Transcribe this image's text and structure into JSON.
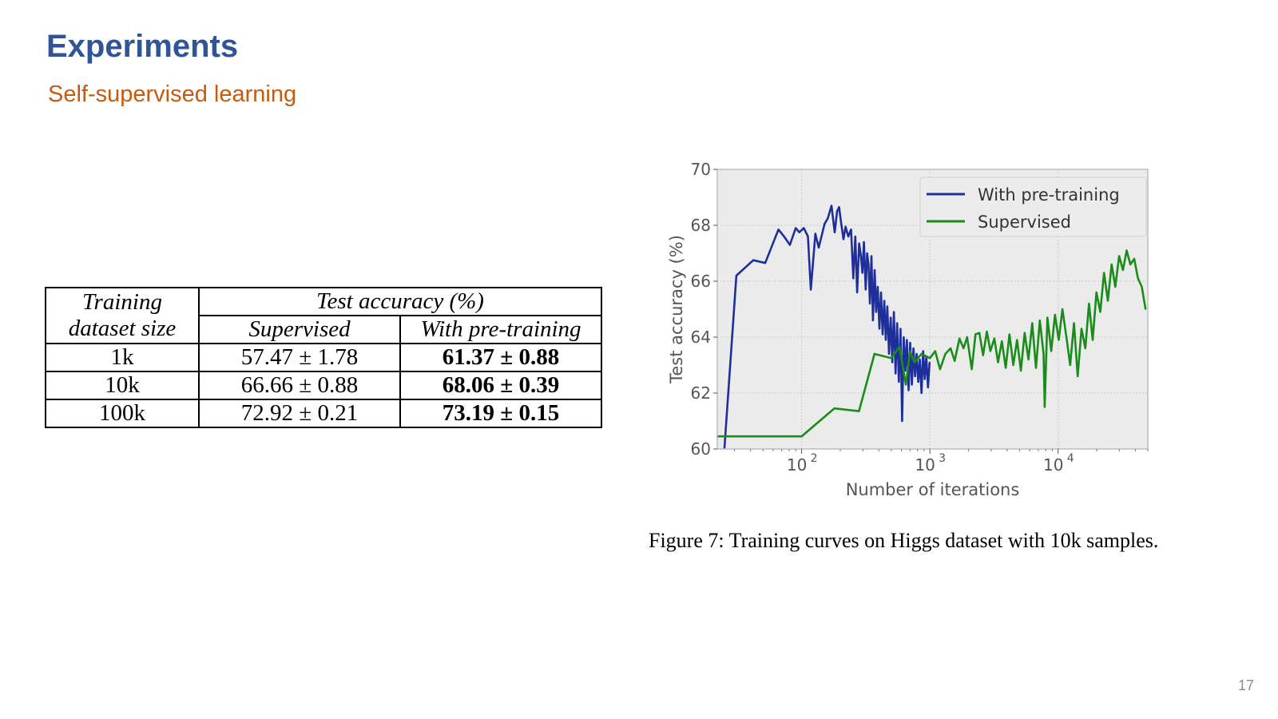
{
  "slide": {
    "title": "Experiments",
    "subtitle": "Self-supervised learning",
    "page_number": "17"
  },
  "table": {
    "header_col1_line1": "Training",
    "header_col1_line2": "dataset size",
    "header_group": "Test accuracy (%)",
    "header_supervised": "Supervised",
    "header_pretraining": "With pre-training",
    "rows": [
      {
        "size": "1k",
        "supervised": "57.47 ± 1.78",
        "pretraining": "61.37 ± 0.88"
      },
      {
        "size": "10k",
        "supervised": "66.66 ± 0.88",
        "pretraining": "68.06 ± 0.39"
      },
      {
        "size": "100k",
        "supervised": "72.92 ± 0.21",
        "pretraining": "73.19 ± 0.15"
      }
    ]
  },
  "caption": "Figure 7: Training curves on Higgs dataset with 10k samples.",
  "colors": {
    "title": "#2F5597",
    "subtitle": "#C55A11",
    "pretraining": "#1f2f99",
    "supervised": "#1a8c1a",
    "plot_bg": "#ebebeb"
  },
  "chart_data": {
    "type": "line",
    "x_scale": "log",
    "xlabel": "Number of iterations",
    "ylabel": "Test accuracy (%)",
    "xlim": [
      22,
      50000
    ],
    "ylim": [
      60,
      70
    ],
    "x_ticks": [
      100,
      1000,
      10000
    ],
    "x_tick_labels": [
      "10",
      "10",
      "10"
    ],
    "x_tick_exponents": [
      "2",
      "3",
      "4"
    ],
    "y_ticks": [
      60,
      62,
      64,
      66,
      68,
      70
    ],
    "grid": true,
    "legend_position": "top-right",
    "series": [
      {
        "name": "With pre-training",
        "x": [
          25,
          31,
          42,
          52,
          66,
          73,
          81,
          90,
          96,
          104,
          112,
          118,
          128,
          136,
          151,
          160,
          171,
          181,
          189,
          196,
          203,
          212,
          220,
          231,
          243,
          253,
          262,
          271,
          281,
          290,
          298,
          306,
          316,
          324,
          332,
          341,
          350,
          360,
          371,
          381,
          392,
          404,
          416,
          428,
          441,
          453,
          466,
          480,
          495,
          509,
          524,
          540,
          556,
          573,
          590,
          607,
          625,
          643,
          662,
          682,
          702,
          723,
          744,
          766,
          788,
          811,
          835,
          860,
          885,
          911,
          938,
          966,
          995
        ],
        "y": [
          60.0,
          66.2,
          66.75,
          66.65,
          67.85,
          67.6,
          67.3,
          67.9,
          67.75,
          67.9,
          67.6,
          65.7,
          67.7,
          67.2,
          68.05,
          68.25,
          68.7,
          67.75,
          68.5,
          68.65,
          68.1,
          67.5,
          67.95,
          67.6,
          67.85,
          66.1,
          67.6,
          65.6,
          67.35,
          66.9,
          66.3,
          67.4,
          65.7,
          67.0,
          66.6,
          65.2,
          66.9,
          64.6,
          66.4,
          64.9,
          65.8,
          64.3,
          65.6,
          64.1,
          65.3,
          63.9,
          65.1,
          63.4,
          64.7,
          63.1,
          64.9,
          62.7,
          64.5,
          62.4,
          64.3,
          61.0,
          64.0,
          62.8,
          63.9,
          62.1,
          63.8,
          62.3,
          63.6,
          62.6,
          63.4,
          62.4,
          63.2,
          62.0,
          63.5,
          62.5,
          63.3,
          62.2,
          63.1
        ]
      },
      {
        "name": "Supervised",
        "x": [
          22,
          100,
          180,
          280,
          370,
          500,
          580,
          650,
          700,
          760,
          860,
          1000,
          1100,
          1200,
          1320,
          1450,
          1560,
          1700,
          1830,
          1950,
          2120,
          2270,
          2430,
          2600,
          2780,
          2960,
          3180,
          3400,
          3640,
          3900,
          4170,
          4470,
          4780,
          5120,
          5480,
          5870,
          6280,
          6720,
          7200,
          7700,
          7850,
          8240,
          8830,
          9450,
          10100,
          10800,
          11600,
          12400,
          13300,
          14200,
          15200,
          16300,
          17400,
          18600,
          19900,
          21300,
          22800,
          24400,
          26100,
          27900,
          29900,
          32000,
          34200,
          36600,
          39200,
          41900,
          44900,
          48000
        ],
        "y": [
          60.45,
          60.45,
          61.45,
          61.35,
          63.4,
          63.25,
          63.65,
          62.3,
          63.5,
          63.1,
          63.4,
          63.25,
          63.5,
          62.85,
          63.4,
          63.6,
          63.15,
          63.95,
          63.6,
          64.0,
          62.85,
          64.1,
          64.15,
          63.35,
          64.2,
          63.5,
          63.95,
          63.1,
          63.85,
          62.9,
          64.1,
          63.0,
          63.9,
          62.8,
          64.15,
          63.2,
          64.5,
          62.9,
          64.6,
          63.4,
          61.5,
          64.7,
          63.5,
          64.8,
          63.9,
          65.0,
          64.0,
          63.0,
          64.5,
          62.6,
          64.3,
          63.6,
          65.2,
          63.9,
          65.6,
          64.9,
          66.3,
          65.3,
          66.6,
          65.8,
          66.9,
          66.4,
          67.1,
          66.6,
          66.8,
          66.1,
          65.8,
          65.0
        ]
      }
    ]
  }
}
